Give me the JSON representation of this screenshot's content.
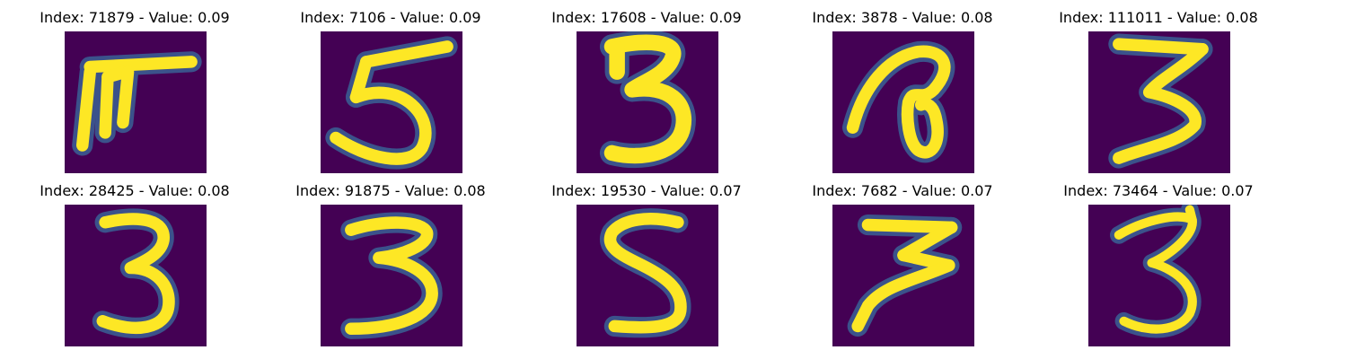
{
  "colors": {
    "background": "#440154",
    "stroke": "#fde725",
    "edge": "#21918c",
    "soft_edge": "#3b528b"
  },
  "panels": [
    {
      "title": "Index: 71879 - Value: 0.09",
      "digit_icon": "digit-7-hooked-icon"
    },
    {
      "title": "Index: 7106 - Value: 0.09",
      "digit_icon": "digit-5-icon"
    },
    {
      "title": "Index: 17608 - Value: 0.09",
      "digit_icon": "digit-3-bold-icon"
    },
    {
      "title": "Index: 3878 - Value: 0.08",
      "digit_icon": "digit-loop-icon"
    },
    {
      "title": "Index: 111011 - Value: 0.08",
      "digit_icon": "digit-3-icon"
    },
    {
      "title": "Index: 28425 - Value: 0.08",
      "digit_icon": "digit-3-icon"
    },
    {
      "title": "Index: 91875 - Value: 0.08",
      "digit_icon": "digit-3-icon"
    },
    {
      "title": "Index: 19530 - Value: 0.07",
      "digit_icon": "digit-5-icon"
    },
    {
      "title": "Index: 7682 - Value: 0.07",
      "digit_icon": "digit-3-slanted-icon"
    },
    {
      "title": "Index: 73464 - Value: 0.07",
      "digit_icon": "digit-3-thin-icon"
    }
  ]
}
